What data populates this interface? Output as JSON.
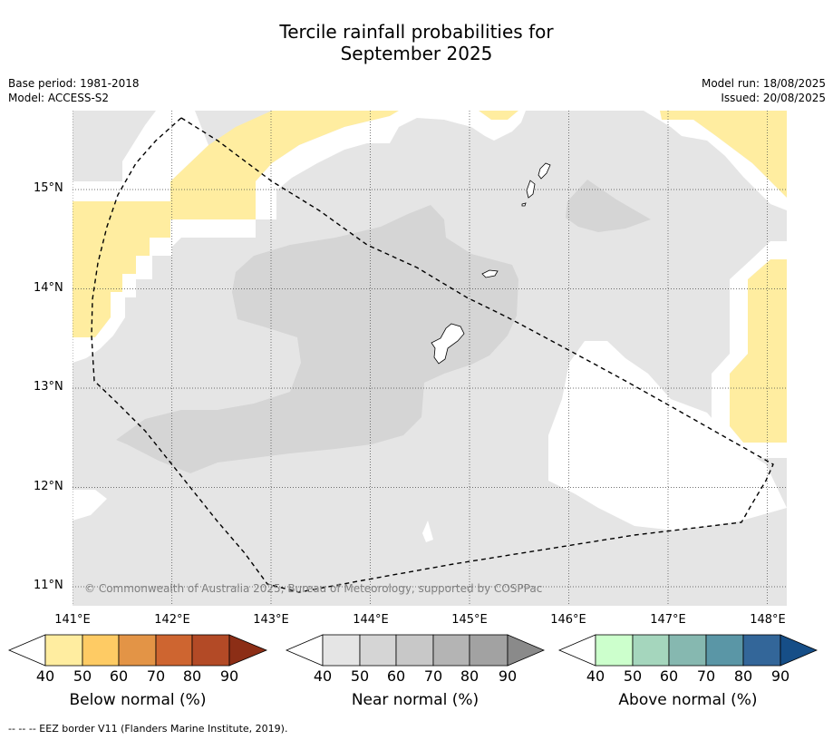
{
  "title_line1": "Tercile rainfall probabilities for",
  "title_line2": "September 2025",
  "meta": {
    "base_period": "Base period: 1981-2018",
    "model": "Model: ACCESS-S2",
    "model_run": "Model run: 18/08/2025",
    "issued": "Issued: 20/08/2025"
  },
  "map": {
    "lon_labels": [
      "141°E",
      "142°E",
      "143°E",
      "144°E",
      "145°E",
      "146°E",
      "147°E",
      "148°E"
    ],
    "lat_labels": [
      "15°N",
      "14°N",
      "13°N",
      "12°N",
      "11°N"
    ],
    "copyright": "© Commonwealth of Australia 2025, Bureau of Meteorology, supported by COSPPac"
  },
  "colorbars": [
    {
      "title": "Below normal (%)",
      "ticks": [
        "40",
        "50",
        "60",
        "70",
        "80",
        "90"
      ],
      "colors": [
        "#ffeda0",
        "#fecb64",
        "#e39446",
        "#ce6530",
        "#b34a26",
        "#8c2e16"
      ]
    },
    {
      "title": "Near normal (%)",
      "ticks": [
        "40",
        "50",
        "60",
        "70",
        "80",
        "90"
      ],
      "colors": [
        "#e5e5e5",
        "#d5d5d5",
        "#c8c8c8",
        "#b4b4b4",
        "#a2a2a2",
        "#8a8a8a"
      ]
    },
    {
      "title": "Above normal (%)",
      "ticks": [
        "40",
        "50",
        "60",
        "70",
        "80",
        "90"
      ],
      "colors": [
        "#ccffcc",
        "#a5d6bd",
        "#86b8b0",
        "#5a96a6",
        "#336699",
        "#164e87"
      ]
    }
  ],
  "footer": "--  --  -- EEZ border V11 (Flanders Marine Institute, 2019)."
}
